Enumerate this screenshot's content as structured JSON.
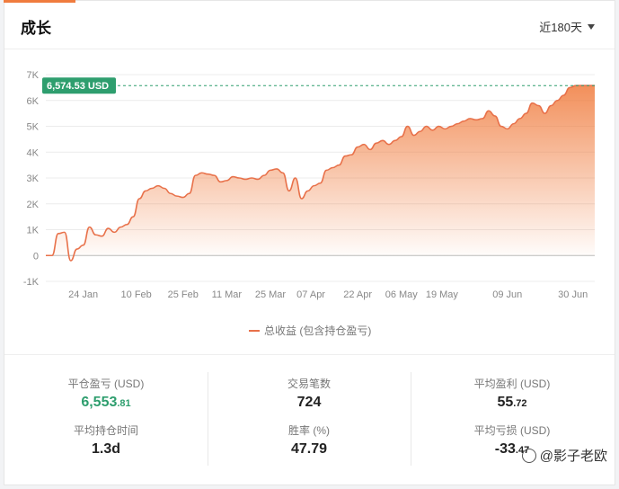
{
  "header": {
    "title": "成长",
    "range_label": "近180天"
  },
  "chart_data": {
    "type": "area",
    "ylim": [
      -1000,
      7000
    ],
    "yticks": [
      -1000,
      0,
      1000,
      2000,
      3000,
      4000,
      5000,
      6000,
      7000
    ],
    "ytick_labels": [
      "-1K",
      "0",
      "1K",
      "2K",
      "3K",
      "4K",
      "5K",
      "6K",
      "7K"
    ],
    "xtick_labels": [
      "24 Jan",
      "10 Feb",
      "25 Feb",
      "11 Mar",
      "25 Mar",
      "07 Apr",
      "22 Apr",
      "06 May",
      "19 May",
      "09 Jun",
      "30 Jun"
    ],
    "xtick_positions": [
      12,
      29,
      44,
      58,
      72,
      85,
      100,
      114,
      127,
      148,
      169
    ],
    "xlim": [
      0,
      176
    ],
    "marker_value": 6574.53,
    "marker_label": "6,574.53 USD",
    "legend": [
      "总收益 (包含持仓盈亏)"
    ],
    "series": [
      {
        "name": "总收益 (包含持仓盈亏)",
        "x": [
          0,
          2,
          4,
          6,
          8,
          10,
          12,
          14,
          16,
          18,
          20,
          22,
          24,
          26,
          28,
          30,
          32,
          34,
          36,
          38,
          40,
          42,
          44,
          46,
          48,
          50,
          52,
          54,
          56,
          58,
          60,
          62,
          64,
          66,
          68,
          70,
          72,
          74,
          76,
          78,
          80,
          82,
          84,
          86,
          88,
          90,
          92,
          94,
          96,
          98,
          100,
          102,
          104,
          106,
          108,
          110,
          112,
          114,
          116,
          118,
          120,
          122,
          124,
          126,
          128,
          130,
          132,
          134,
          136,
          138,
          140,
          142,
          144,
          146,
          148,
          150,
          152,
          154,
          156,
          158,
          160,
          162,
          164,
          166,
          168,
          170,
          172,
          174,
          176
        ],
        "values": [
          0,
          0,
          850,
          900,
          -200,
          250,
          400,
          1100,
          800,
          750,
          1050,
          900,
          1100,
          1200,
          1500,
          2200,
          2500,
          2600,
          2700,
          2600,
          2400,
          2300,
          2250,
          2400,
          3100,
          3200,
          3150,
          3100,
          2850,
          2900,
          3050,
          3000,
          2950,
          3000,
          2950,
          3100,
          3300,
          3350,
          3200,
          2500,
          3000,
          2200,
          2500,
          2700,
          2800,
          3300,
          3400,
          3500,
          3850,
          3900,
          4200,
          4300,
          4100,
          4350,
          4450,
          4300,
          4450,
          4600,
          5000,
          4650,
          4800,
          5000,
          4850,
          5000,
          4900,
          5000,
          5100,
          5200,
          5300,
          5250,
          5300,
          5600,
          5400,
          5000,
          4900,
          5100,
          5300,
          5500,
          5900,
          5800,
          5500,
          5800,
          6000,
          6200,
          6500,
          6574.53,
          6574.53,
          6574.53,
          6574.53
        ]
      }
    ]
  },
  "stats": [
    [
      {
        "label": "平仓盈亏 (USD)",
        "int": "6,553",
        "dec": ".81",
        "color": "green"
      },
      {
        "label": "平均持仓时间",
        "int": "1.3d",
        "dec": ""
      }
    ],
    [
      {
        "label": "交易笔数",
        "int": "724",
        "dec": ""
      },
      {
        "label": "胜率 (%)",
        "int": "47.79",
        "dec": ""
      }
    ],
    [
      {
        "label": "平均盈利 (USD)",
        "int": "55",
        "dec": ".72"
      },
      {
        "label": "平均亏损 (USD)",
        "int": "-33",
        "dec": ".47"
      }
    ]
  ],
  "watermark": "@影子老欧"
}
